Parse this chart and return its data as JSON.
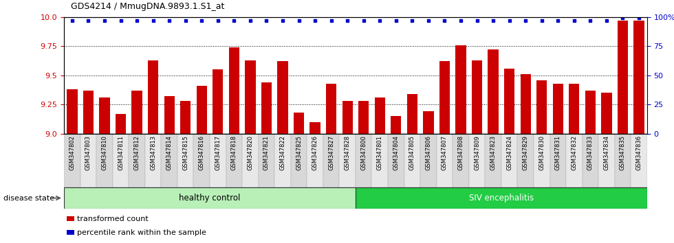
{
  "title": "GDS4214 / MmugDNA.9893.1.S1_at",
  "samples": [
    "GSM347802",
    "GSM347803",
    "GSM347810",
    "GSM347811",
    "GSM347812",
    "GSM347813",
    "GSM347814",
    "GSM347815",
    "GSM347816",
    "GSM347817",
    "GSM347818",
    "GSM347820",
    "GSM347821",
    "GSM347822",
    "GSM347825",
    "GSM347826",
    "GSM347827",
    "GSM347828",
    "GSM347800",
    "GSM347801",
    "GSM347804",
    "GSM347805",
    "GSM347806",
    "GSM347807",
    "GSM347808",
    "GSM347809",
    "GSM347823",
    "GSM347824",
    "GSM347829",
    "GSM347830",
    "GSM347831",
    "GSM347832",
    "GSM347833",
    "GSM347834",
    "GSM347835",
    "GSM347836"
  ],
  "bar_values": [
    9.38,
    9.37,
    9.31,
    9.17,
    9.37,
    9.63,
    9.32,
    9.28,
    9.41,
    9.55,
    9.74,
    9.63,
    9.44,
    9.62,
    9.18,
    9.1,
    9.43,
    9.28,
    9.28,
    9.31,
    9.15,
    9.34,
    9.19,
    9.62,
    9.76,
    9.63,
    9.72,
    9.56,
    9.51,
    9.46,
    9.43,
    9.43,
    9.37,
    9.35,
    9.97,
    9.97
  ],
  "percentile_values": [
    97,
    97,
    97,
    97,
    97,
    97,
    97,
    97,
    97,
    97,
    97,
    97,
    97,
    97,
    97,
    97,
    97,
    97,
    97,
    97,
    97,
    97,
    97,
    97,
    97,
    97,
    97,
    97,
    97,
    97,
    97,
    97,
    97,
    97,
    99,
    99
  ],
  "healthy_count": 18,
  "ylim_left": [
    9.0,
    10.0
  ],
  "ylim_right": [
    0,
    100
  ],
  "bar_color": "#cc0000",
  "dot_color": "#0000cc",
  "healthy_color": "#b8f0b8",
  "siv_color": "#22cc44",
  "healthy_label": "healthy control",
  "siv_label": "SIV encephalitis",
  "yticks_left": [
    9.0,
    9.25,
    9.5,
    9.75,
    10.0
  ],
  "yticks_right": [
    0,
    25,
    50,
    75,
    100
  ],
  "disease_state_label": "disease state",
  "legend_bar_label": "transformed count",
  "legend_dot_label": "percentile rank within the sample",
  "xlabel_bg_even": "#d8d8d8",
  "xlabel_bg_odd": "#e8e8e8"
}
